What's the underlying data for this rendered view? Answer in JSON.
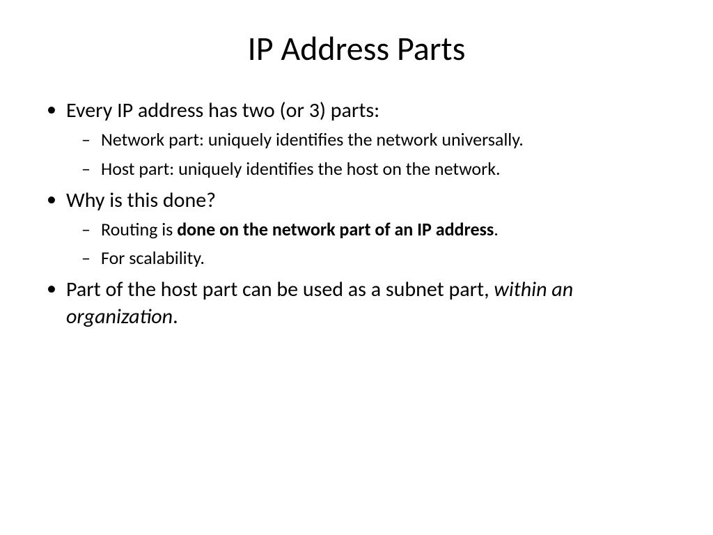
{
  "slide": {
    "title": "IP Address Parts",
    "bullets": {
      "b1": "Every IP address has two (or 3) parts:",
      "b1_1": "Network part: uniquely identifies the network universally.",
      "b1_2": "Host part: uniquely identifies the host on the network.",
      "b2": "Why is this done?",
      "b2_1_prefix": "Routing is ",
      "b2_1_bold": "done on the network part of an IP address",
      "b2_1_suffix": ".",
      "b2_2": "For scalability.",
      "b3_prefix": "Part of the host part can be used as a subnet part, ",
      "b3_italic": "within an organization",
      "b3_suffix": "."
    }
  },
  "style": {
    "background_color": "#ffffff",
    "text_color": "#000000",
    "title_fontsize": 48,
    "level1_fontsize": 30,
    "level2_fontsize": 26,
    "font_family": "Calibri"
  }
}
